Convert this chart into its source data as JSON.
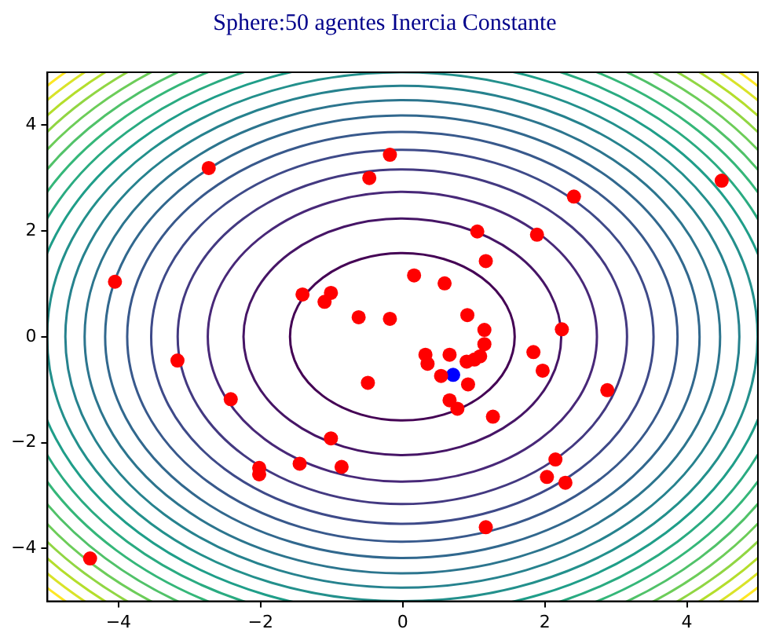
{
  "chart_data": {
    "type": "scatter",
    "title": "Sphere:50 agentes Inercia Constante",
    "xlim": [
      -5,
      5
    ],
    "ylim": [
      -5,
      5
    ],
    "xticks": [
      -4,
      -2,
      0,
      2,
      4
    ],
    "yticks": [
      -4,
      -2,
      0,
      2,
      4
    ],
    "grid": false,
    "legend": false,
    "marker": "circle",
    "series": [
      {
        "color": "#ff0000",
        "x": [
          -2.73,
          -0.18,
          -0.47,
          -4.05,
          -1.41,
          -1.01,
          -1.1,
          -0.62,
          -0.18,
          4.49,
          2.41,
          1.05,
          1.89,
          1.17,
          0.16,
          0.59,
          0.91,
          1.15,
          2.24,
          1.15,
          0.32,
          0.66,
          0.35,
          0.9,
          1.09,
          1.01,
          0.54,
          0.92,
          1.84,
          1.97,
          2.88,
          0.66,
          0.77,
          1.27,
          2.15,
          2.03,
          2.29,
          1.17,
          -3.17,
          -0.49,
          -2.42,
          -1.01,
          -2.02,
          -2.02,
          -1.45,
          -0.86,
          -4.4
        ],
        "values": [
          3.19,
          3.44,
          3.0,
          1.04,
          0.8,
          0.83,
          0.66,
          0.37,
          0.34,
          2.95,
          2.65,
          1.99,
          1.93,
          1.43,
          1.16,
          1.01,
          0.41,
          0.13,
          0.14,
          -0.14,
          -0.34,
          -0.34,
          -0.51,
          -0.47,
          -0.37,
          -0.43,
          -0.74,
          -0.9,
          -0.29,
          -0.64,
          -1.01,
          -1.2,
          -1.36,
          -1.51,
          -2.32,
          -2.65,
          -2.76,
          -3.6,
          -0.45,
          -0.87,
          -1.18,
          -1.92,
          -2.48,
          -2.6,
          -2.4,
          -2.46,
          -4.19
        ]
      },
      {
        "color": "#0000ff",
        "x": [
          0.71
        ],
        "values": [
          -0.72
        ]
      }
    ]
  }
}
